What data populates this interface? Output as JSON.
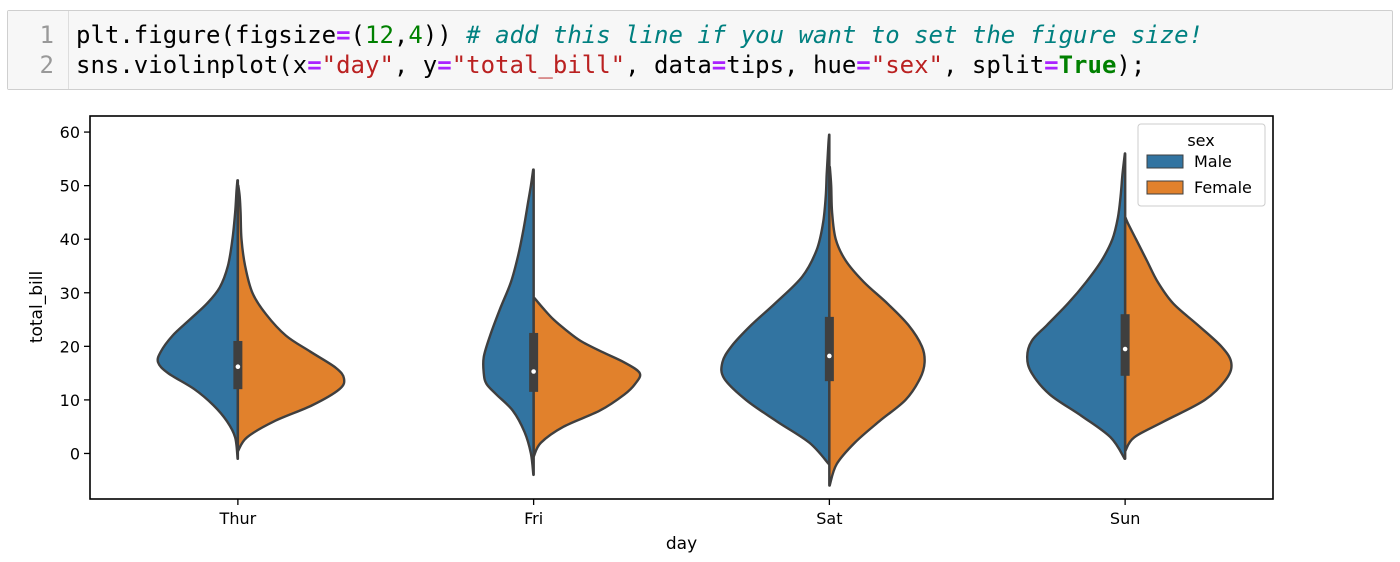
{
  "code": {
    "lines": [
      {
        "number": "1",
        "tokens": [
          {
            "t": "plt.figure(figsize",
            "c": ""
          },
          {
            "t": "=",
            "c": "op"
          },
          {
            "t": "(",
            "c": ""
          },
          {
            "t": "12",
            "c": "num"
          },
          {
            "t": ",",
            "c": ""
          },
          {
            "t": "4",
            "c": "num"
          },
          {
            "t": ")) ",
            "c": ""
          },
          {
            "t": "# add this line if you want to set the figure size!",
            "c": "cmt"
          }
        ]
      },
      {
        "number": "2",
        "tokens": [
          {
            "t": "sns.violinplot(x",
            "c": ""
          },
          {
            "t": "=",
            "c": "op"
          },
          {
            "t": "\"day\"",
            "c": "str"
          },
          {
            "t": ", y",
            "c": ""
          },
          {
            "t": "=",
            "c": "op"
          },
          {
            "t": "\"total_bill\"",
            "c": "str"
          },
          {
            "t": ", data",
            "c": ""
          },
          {
            "t": "=",
            "c": "op"
          },
          {
            "t": "tips, hue",
            "c": ""
          },
          {
            "t": "=",
            "c": "op"
          },
          {
            "t": "\"sex\"",
            "c": "str"
          },
          {
            "t": ", split",
            "c": ""
          },
          {
            "t": "=",
            "c": "op"
          },
          {
            "t": "True",
            "c": "kw"
          },
          {
            "t": ");",
            "c": ""
          }
        ]
      }
    ]
  },
  "chart_data": {
    "type": "violin",
    "split": true,
    "xlabel": "day",
    "ylabel": "total_bill",
    "ylim": [
      -8.5,
      63
    ],
    "yticks": [
      0,
      10,
      20,
      30,
      40,
      50,
      60
    ],
    "categories": [
      "Thur",
      "Fri",
      "Sat",
      "Sun"
    ],
    "grid": false,
    "legend": {
      "title": "sex",
      "placement": "top-right"
    },
    "series": [
      {
        "name": "Male",
        "color": "#3274a1",
        "violins": [
          {
            "day": "Thur",
            "min": -1,
            "max": 51,
            "q1": 12,
            "median": 16.2,
            "q3": 21,
            "profile": [
              [
                -1,
                0.3
              ],
              [
                3,
                3
              ],
              [
                6,
                12
              ],
              [
                9,
                27
              ],
              [
                12,
                48
              ],
              [
                15,
                77
              ],
              [
                17,
                88
              ],
              [
                19,
                85
              ],
              [
                22,
                72
              ],
              [
                25,
                53
              ],
              [
                28,
                34
              ],
              [
                31,
                20
              ],
              [
                35,
                11
              ],
              [
                40,
                6
              ],
              [
                45,
                3
              ],
              [
                49,
                1.5
              ],
              [
                51,
                0.5
              ]
            ]
          },
          {
            "day": "Fri",
            "min": -4,
            "max": 53,
            "q1": 11.5,
            "median": 15.3,
            "q3": 22.5,
            "profile": [
              [
                -4,
                0.3
              ],
              [
                0,
                3
              ],
              [
                4,
                10
              ],
              [
                8,
                23
              ],
              [
                11,
                41
              ],
              [
                13,
                52
              ],
              [
                15,
                55
              ],
              [
                18,
                55
              ],
              [
                22,
                48
              ],
              [
                27,
                37
              ],
              [
                32,
                25
              ],
              [
                37,
                17
              ],
              [
                42,
                11
              ],
              [
                47,
                6
              ],
              [
                50,
                3
              ],
              [
                53,
                0.5
              ]
            ]
          },
          {
            "day": "Sat",
            "min": -2,
            "max": 59.5,
            "q1": 13.5,
            "median": 18.2,
            "q3": 25.5,
            "profile": [
              [
                -2,
                0.5
              ],
              [
                2,
                22
              ],
              [
                6,
                58
              ],
              [
                10,
                92
              ],
              [
                14,
                116
              ],
              [
                17,
                118
              ],
              [
                20,
                108
              ],
              [
                24,
                86
              ],
              [
                28,
                60
              ],
              [
                33,
                30
              ],
              [
                38,
                14
              ],
              [
                43,
                7
              ],
              [
                48,
                4
              ],
              [
                52,
                3
              ],
              [
                55,
                2
              ],
              [
                58,
                1
              ],
              [
                59.5,
                0.3
              ]
            ]
          },
          {
            "day": "Sun",
            "min": -1,
            "max": 56,
            "q1": 14.5,
            "median": 19.5,
            "q3": 26,
            "profile": [
              [
                -1,
                0.5
              ],
              [
                3,
                16
              ],
              [
                7,
                48
              ],
              [
                11,
                83
              ],
              [
                15,
                103
              ],
              [
                18,
                108
              ],
              [
                21,
                103
              ],
              [
                24,
                86
              ],
              [
                28,
                63
              ],
              [
                32,
                43
              ],
              [
                36,
                26
              ],
              [
                40,
                14
              ],
              [
                44,
                8
              ],
              [
                48,
                5
              ],
              [
                52,
                3
              ],
              [
                55,
                1
              ],
              [
                56,
                0.3
              ]
            ]
          }
        ]
      },
      {
        "name": "Female",
        "color": "#e1812c",
        "violins": [
          {
            "day": "Thur",
            "min": 0.5,
            "max": 50,
            "q1": 12,
            "median": 16.2,
            "q3": 21,
            "profile": [
              [
                0.5,
                0.3
              ],
              [
                3,
                10
              ],
              [
                6,
                40
              ],
              [
                9,
                82
              ],
              [
                12,
                112
              ],
              [
                14,
                117
              ],
              [
                16,
                108
              ],
              [
                19,
                80
              ],
              [
                22,
                53
              ],
              [
                26,
                31
              ],
              [
                30,
                16
              ],
              [
                35,
                8
              ],
              [
                40,
                4
              ],
              [
                45,
                3
              ],
              [
                48,
                2
              ],
              [
                50,
                0.5
              ]
            ]
          },
          {
            "day": "Fri",
            "min": -0.5,
            "max": 29,
            "q1": 11.5,
            "median": 15.3,
            "q3": 22.5,
            "profile": [
              [
                -0.5,
                0.3
              ],
              [
                2,
                8
              ],
              [
                5,
                33
              ],
              [
                8,
                73
              ],
              [
                11,
                100
              ],
              [
                13,
                112
              ],
              [
                15,
                117
              ],
              [
                17,
                100
              ],
              [
                19,
                75
              ],
              [
                21,
                52
              ],
              [
                23,
                36
              ],
              [
                25,
                22
              ],
              [
                27,
                11
              ],
              [
                29,
                1
              ]
            ]
          },
          {
            "day": "Sat",
            "min": -6,
            "max": 53.5,
            "q1": 13.5,
            "median": 18.2,
            "q3": 25.5,
            "profile": [
              [
                -6,
                0.3
              ],
              [
                -2,
                8
              ],
              [
                2,
                28
              ],
              [
                6,
                55
              ],
              [
                10,
                84
              ],
              [
                14,
                100
              ],
              [
                17,
                105
              ],
              [
                20,
                102
              ],
              [
                24,
                87
              ],
              [
                28,
                64
              ],
              [
                32,
                38
              ],
              [
                36,
                18
              ],
              [
                40,
                7
              ],
              [
                45,
                3
              ],
              [
                50,
                2
              ],
              [
                53.5,
                0.5
              ]
            ]
          },
          {
            "day": "Sun",
            "min": 0.5,
            "max": 44,
            "q1": 14.5,
            "median": 19.5,
            "q3": 26,
            "profile": [
              [
                0.5,
                0.3
              ],
              [
                3,
                10
              ],
              [
                6,
                43
              ],
              [
                10,
                88
              ],
              [
                14,
                112
              ],
              [
                17,
                117
              ],
              [
                20,
                106
              ],
              [
                24,
                80
              ],
              [
                28,
                53
              ],
              [
                32,
                36
              ],
              [
                36,
                24
              ],
              [
                40,
                12
              ],
              [
                43,
                3
              ],
              [
                44,
                0.5
              ]
            ]
          }
        ]
      }
    ]
  }
}
